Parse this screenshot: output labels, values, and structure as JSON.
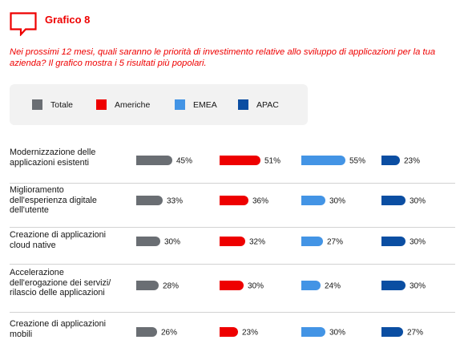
{
  "header": {
    "title": "Grafico 8"
  },
  "question": "Nei prossimi 12 mesi, quali saranno le priorità di investimento relative allo sviluppo di applicazioni per la tua azienda? Il grafico mostra i 5 risultati più popolari.",
  "colors": {
    "accent": "#ee0000",
    "Totale": "#6a6e73",
    "Americhe": "#ee0000",
    "EMEA": "#4394e5",
    "APAC": "#0b4ea2"
  },
  "legend": [
    {
      "label": "Totale",
      "color": "#6a6e73"
    },
    {
      "label": "Americhe",
      "color": "#ee0000"
    },
    {
      "label": "EMEA",
      "color": "#4394e5"
    },
    {
      "label": "APAC",
      "color": "#0b4ea2"
    }
  ],
  "rows": [
    {
      "label": "Modernizzazione delle applicazioni esistenti",
      "lines": [
        "Modernizzazione delle",
        "applicazioni esistenti"
      ]
    },
    {
      "label": "Miglioramento dell'esperienza digitale dell'utente",
      "lines": [
        "Miglioramento",
        "dell'esperienza digitale",
        "dell'utente"
      ]
    },
    {
      "label": "Creazione di applicazioni cloud native",
      "lines": [
        "Creazione di applicazioni",
        "cloud native"
      ]
    },
    {
      "label": "Accelerazione dell'erogazione dei servizi/rilascio delle applicazioni",
      "lines": [
        "Accelerazione",
        "dell'erogazione dei servizi/",
        "rilascio delle applicazioni"
      ]
    },
    {
      "label": "Creazione di applicazioni mobili",
      "lines": [
        "Creazione di applicazioni",
        "mobili"
      ]
    }
  ],
  "chart_data": {
    "type": "bar",
    "orientation": "horizontal",
    "title": "Grafico 8",
    "categories": [
      "Modernizzazione delle applicazioni esistenti",
      "Miglioramento dell'esperienza digitale dell'utente",
      "Creazione di applicazioni cloud native",
      "Accelerazione dell'erogazione dei servizi/rilascio delle applicazioni",
      "Creazione di applicazioni mobili"
    ],
    "series": [
      {
        "name": "Totale",
        "color": "#6a6e73",
        "values": [
          45,
          33,
          30,
          28,
          26
        ],
        "labels": [
          "45%",
          "33%",
          "30%",
          "28%",
          "26%"
        ]
      },
      {
        "name": "Americhe",
        "color": "#ee0000",
        "values": [
          51,
          36,
          32,
          30,
          23
        ],
        "labels": [
          "51%",
          "36%",
          "32%",
          "30%",
          "23%"
        ]
      },
      {
        "name": "EMEA",
        "color": "#4394e5",
        "values": [
          55,
          30,
          27,
          24,
          30
        ],
        "labels": [
          "55%",
          "30%",
          "27%",
          "24%",
          "30%"
        ]
      },
      {
        "name": "APAC",
        "color": "#0b4ea2",
        "values": [
          23,
          30,
          30,
          30,
          27
        ],
        "labels": [
          "23%",
          "30%",
          "30%",
          "30%",
          "27%"
        ]
      }
    ],
    "xlim": [
      0,
      100
    ],
    "grid": false,
    "legend_position": "top"
  }
}
